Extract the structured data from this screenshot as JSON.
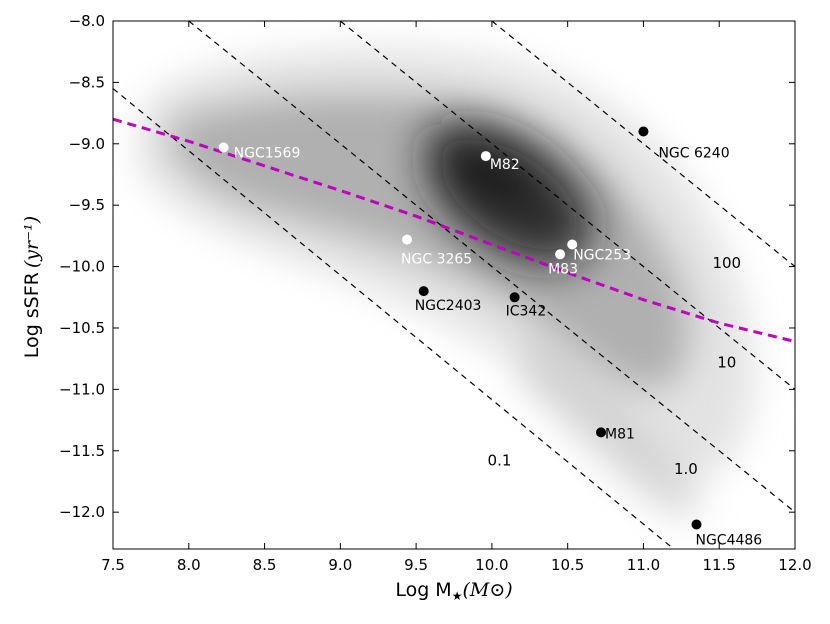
{
  "chart_data": {
    "type": "scatter",
    "xlabel": "Log M",
    "xlabel_math": "(M⊙)",
    "ylabel": "Log sSFR",
    "ylabel_math": "(yr⁻¹)",
    "xlim": [
      7.5,
      12.0
    ],
    "ylim": [
      -12.3,
      -8.0
    ],
    "x_ticks": [
      7.5,
      8.0,
      8.5,
      9.0,
      9.5,
      10.0,
      10.5,
      11.0,
      11.5,
      12.0
    ],
    "x_tick_labels": [
      "7.5",
      "8.0",
      "8.5",
      "9.0",
      "9.5",
      "10.0",
      "10.5",
      "11.0",
      "11.5",
      "12.0"
    ],
    "y_ticks": [
      -8.0,
      -8.5,
      -9.0,
      -9.5,
      -10.0,
      -10.5,
      -11.0,
      -11.5,
      -12.0
    ],
    "y_tick_labels": [
      "−8.0",
      "−8.5",
      "−9.0",
      "−9.5",
      "−10.0",
      "−10.5",
      "−11.0",
      "−11.5",
      "−12.0"
    ],
    "galaxies": [
      {
        "name": "NGC1569",
        "x": 8.23,
        "y": -9.03,
        "color": "#ffffff",
        "label_dx": 10,
        "label_dy": 10
      },
      {
        "name": "NGC 3265",
        "x": 9.44,
        "y": -9.78,
        "color": "#ffffff",
        "label_dx": -6,
        "label_dy": 24
      },
      {
        "name": "M82",
        "x": 9.96,
        "y": -9.1,
        "color": "#ffffff",
        "label_dx": 4,
        "label_dy": 13
      },
      {
        "name": "M83",
        "x": 10.45,
        "y": -9.9,
        "color": "#ffffff",
        "label_dx": -12,
        "label_dy": 19
      },
      {
        "name": "NGC253",
        "x": 10.53,
        "y": -9.82,
        "color": "#ffffff",
        "label_dx": 1,
        "label_dy": 15
      },
      {
        "name": "NGC2403",
        "x": 9.55,
        "y": -10.2,
        "color": "#000000",
        "label_dx": -9,
        "label_dy": 19
      },
      {
        "name": "IC342",
        "x": 10.15,
        "y": -10.25,
        "color": "#000000",
        "label_dx": -9,
        "label_dy": 18
      },
      {
        "name": "NGC 6240",
        "x": 11.0,
        "y": -8.9,
        "color": "#000000",
        "label_dx": 15,
        "label_dy": 26
      },
      {
        "name": "M81",
        "x": 10.72,
        "y": -11.35,
        "color": "#000000",
        "label_dx": 4,
        "label_dy": 6
      },
      {
        "name": "NGC4486",
        "x": 11.35,
        "y": -12.1,
        "color": "#000000",
        "label_dx": -1,
        "label_dy": 20
      }
    ],
    "fit_curve": {
      "color": "#bf00bf",
      "x": [
        7.5,
        8.0,
        8.5,
        9.0,
        9.5,
        10.0,
        10.5,
        11.0,
        11.5,
        12.0
      ],
      "y": [
        -8.8,
        -8.98,
        -9.18,
        -9.38,
        -9.59,
        -9.82,
        -10.05,
        -10.27,
        -10.46,
        -10.61
      ]
    },
    "constant_sfr_lines": [
      {
        "label": "0.1",
        "x": [
          7.5,
          11.2
        ],
        "y": [
          -8.55,
          -12.3
        ],
        "label_x": 10.05,
        "label_y": -11.58
      },
      {
        "label": "1.0",
        "x": [
          8.0,
          12.0
        ],
        "y": [
          -8.0,
          -12.0
        ],
        "label_x": 11.28,
        "label_y": -11.65
      },
      {
        "label": "10",
        "x": [
          9.0,
          12.0
        ],
        "y": [
          -8.0,
          -11.0
        ],
        "label_x": 11.55,
        "label_y": -10.78
      },
      {
        "label": "100",
        "x": [
          10.0,
          12.0
        ],
        "y": [
          -8.0,
          -10.0
        ],
        "label_x": 11.55,
        "label_y": -9.97
      }
    ]
  }
}
